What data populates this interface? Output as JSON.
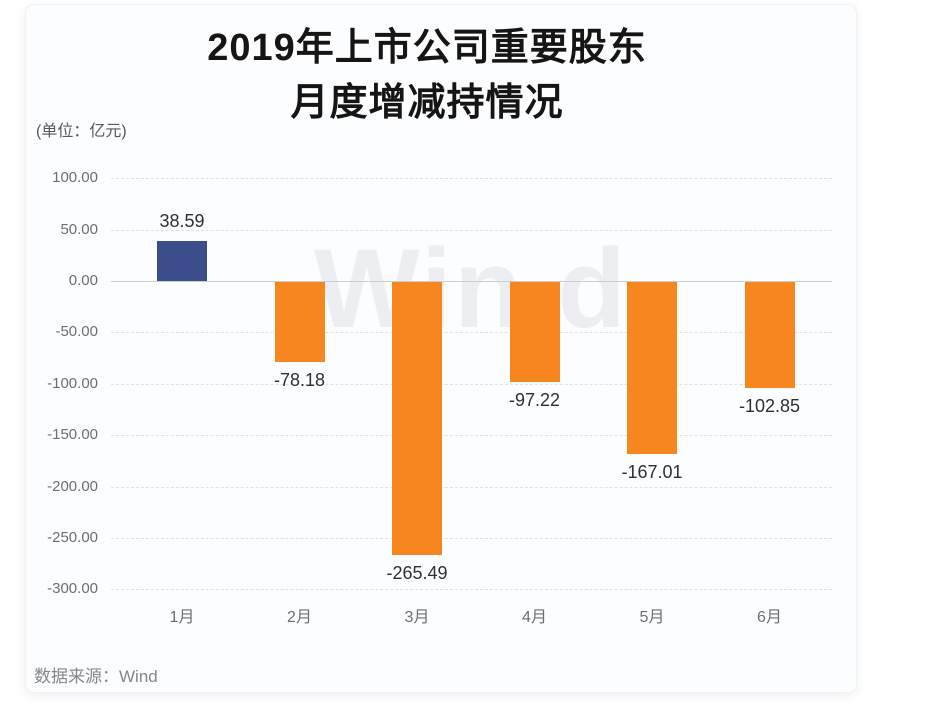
{
  "title": {
    "line1": "2019年上市公司重要股东",
    "line2": "月度增减持情况"
  },
  "unit_label": "(单位：亿元)",
  "watermark_text": "Win.d",
  "footer": {
    "source": "数据来源：Wind"
  },
  "colors": {
    "positive_bar": "#3B4D8B",
    "negative_bar": "#F7861F",
    "gridline": "#dfe1e4",
    "zero_line": "#c9ced4",
    "watermark": "#eceef1"
  },
  "chart_data": {
    "type": "bar",
    "title": "2019年上市公司重要股东 月度增减持情况",
    "unit": "亿元",
    "categories": [
      "1月",
      "2月",
      "3月",
      "4月",
      "5月",
      "6月"
    ],
    "values": [
      38.59,
      -78.18,
      -265.49,
      -97.22,
      -167.01,
      -102.85
    ],
    "data_labels": [
      "38.59",
      "-78.18",
      "-265.49",
      "-97.22",
      "-167.01",
      "-102.85"
    ],
    "ylim": [
      -300,
      100
    ],
    "ytick_step": 50,
    "yticks": [
      100,
      50,
      0,
      -50,
      -100,
      -150,
      -200,
      -250,
      -300
    ],
    "ytick_labels": [
      "100.00",
      "50.00",
      "0.00",
      "-50.00",
      "-100.00",
      "-150.00",
      "-200.00",
      "-250.00",
      "-300.00"
    ],
    "grid": "dashed-horizontal",
    "legend": "none",
    "bar_color_positive": "#3B4D8B",
    "bar_color_negative": "#F7861F",
    "source": "Wind"
  }
}
